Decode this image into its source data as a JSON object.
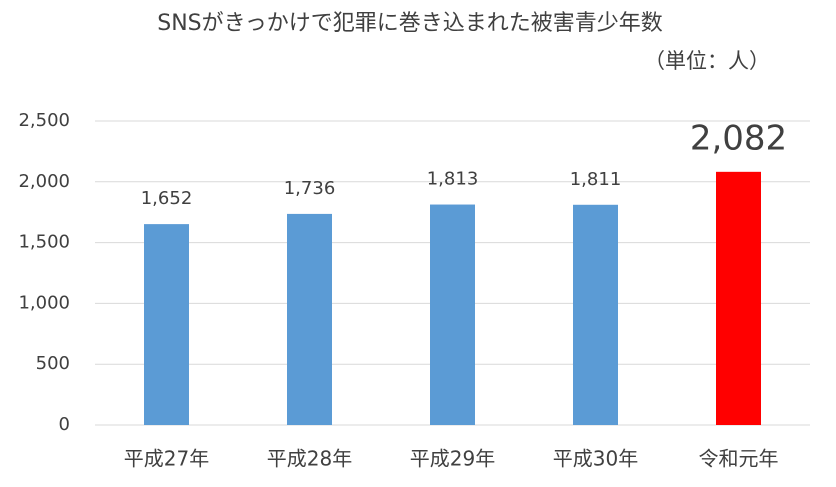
{
  "chart_data": {
    "type": "bar",
    "title": "SNSがきっかけで犯罪に巻き込まれた被害青少年数",
    "subtitle": "（単位：人）",
    "categories": [
      "平成27年",
      "平成28年",
      "平成29年",
      "平成30年",
      "令和元年"
    ],
    "values": [
      1652,
      1736,
      1813,
      1811,
      2082
    ],
    "value_labels": [
      "1,652",
      "1,736",
      "1,813",
      "1,811",
      "2,082"
    ],
    "colors": [
      "#5b9bd5",
      "#5b9bd5",
      "#5b9bd5",
      "#5b9bd5",
      "#ff0000"
    ],
    "ylim": [
      0,
      2500
    ],
    "yticks": [
      0,
      500,
      {
        "value": 1000,
        "label": "1,000"
      },
      {
        "value": 1500,
        "label": "1,500"
      },
      {
        "value": 2000,
        "label": "2,000"
      },
      {
        "value": 2500,
        "label": "2,500"
      }
    ],
    "grid": true
  }
}
